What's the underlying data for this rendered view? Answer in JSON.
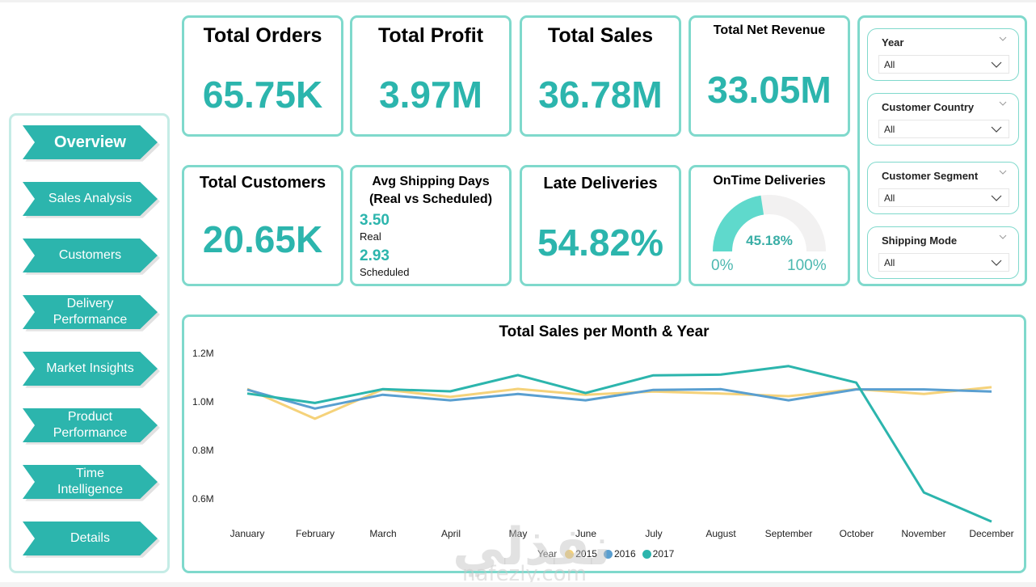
{
  "sidebar": {
    "items": [
      {
        "label": "Overview",
        "active": true
      },
      {
        "label": "Sales Analysis",
        "active": false
      },
      {
        "label": "Customers",
        "active": false
      },
      {
        "label": "Delivery Performance",
        "active": false
      },
      {
        "label": "Market Insights",
        "active": false
      },
      {
        "label": "Product Performance",
        "active": false
      },
      {
        "label": "Time Intelligence",
        "active": false
      },
      {
        "label": "Details",
        "active": false
      }
    ]
  },
  "kpis": {
    "total_orders": {
      "title": "Total Orders",
      "value": "65.75K"
    },
    "total_profit": {
      "title": "Total Profit",
      "value": "3.97M"
    },
    "total_sales": {
      "title": "Total Sales",
      "value": "36.78M"
    },
    "total_net_revenue": {
      "title": "Total Net Revenue",
      "value": "33.05M"
    },
    "total_customers": {
      "title": "Total Customers",
      "value": "20.65K"
    },
    "avg_shipping": {
      "title_line1": "Avg Shipping Days",
      "title_line2": "(Real vs Scheduled)",
      "real_value": "3.50",
      "real_label": "Real",
      "scheduled_value": "2.93",
      "scheduled_label": "Scheduled"
    },
    "late_deliveries": {
      "title": "Late Deliveries",
      "value": "54.82%"
    },
    "ontime_deliveries": {
      "title": "OnTime Deliveries",
      "value": "45.18%",
      "fraction": 0.4518,
      "min_label": "0%",
      "max_label": "100%"
    }
  },
  "filters": [
    {
      "label": "Year",
      "value": "All"
    },
    {
      "label": "Customer Country",
      "value": "All"
    },
    {
      "label": "Customer Segment",
      "value": "All"
    },
    {
      "label": "Shipping Mode",
      "value": "All"
    }
  ],
  "colors": {
    "accent": "#2cb5ad",
    "border": "#7fd9cc",
    "gauge_fill": "#5fd9cc",
    "gauge_track": "#f2f1f1"
  },
  "watermark": {
    "text": "نفذلي",
    "sub": "nafezly.com"
  },
  "chart_data": {
    "type": "line",
    "title": "Total Sales per Month & Year",
    "xlabel": "",
    "ylabel": "",
    "x": [
      "January",
      "February",
      "March",
      "April",
      "May",
      "June",
      "July",
      "August",
      "September",
      "October",
      "November",
      "December"
    ],
    "yticks": [
      {
        "value": 1.2,
        "label": "1.2M"
      },
      {
        "value": 1.0,
        "label": "1.0M"
      },
      {
        "value": 0.8,
        "label": "0.8M"
      },
      {
        "value": 0.6,
        "label": "0.6M"
      }
    ],
    "ylim": [
      0.47,
      1.25
    ],
    "unit": "M",
    "grid": false,
    "legend": {
      "title": "Year",
      "position": "bottom-center"
    },
    "series": [
      {
        "name": "2015",
        "color": "#f5d27a",
        "values": [
          1.05,
          0.927,
          1.048,
          1.017,
          1.05,
          1.026,
          1.039,
          1.031,
          1.02,
          1.049,
          1.029,
          1.057
        ]
      },
      {
        "name": "2016",
        "color": "#5a9fd0",
        "values": [
          1.047,
          0.969,
          1.026,
          1.003,
          1.029,
          1.003,
          1.046,
          1.049,
          1.003,
          1.048,
          1.048,
          1.039
        ]
      },
      {
        "name": "2017",
        "color": "#2cb5ad",
        "values": [
          1.031,
          0.992,
          1.049,
          1.04,
          1.107,
          1.033,
          1.106,
          1.109,
          1.144,
          1.076,
          0.623,
          0.503
        ]
      }
    ]
  }
}
